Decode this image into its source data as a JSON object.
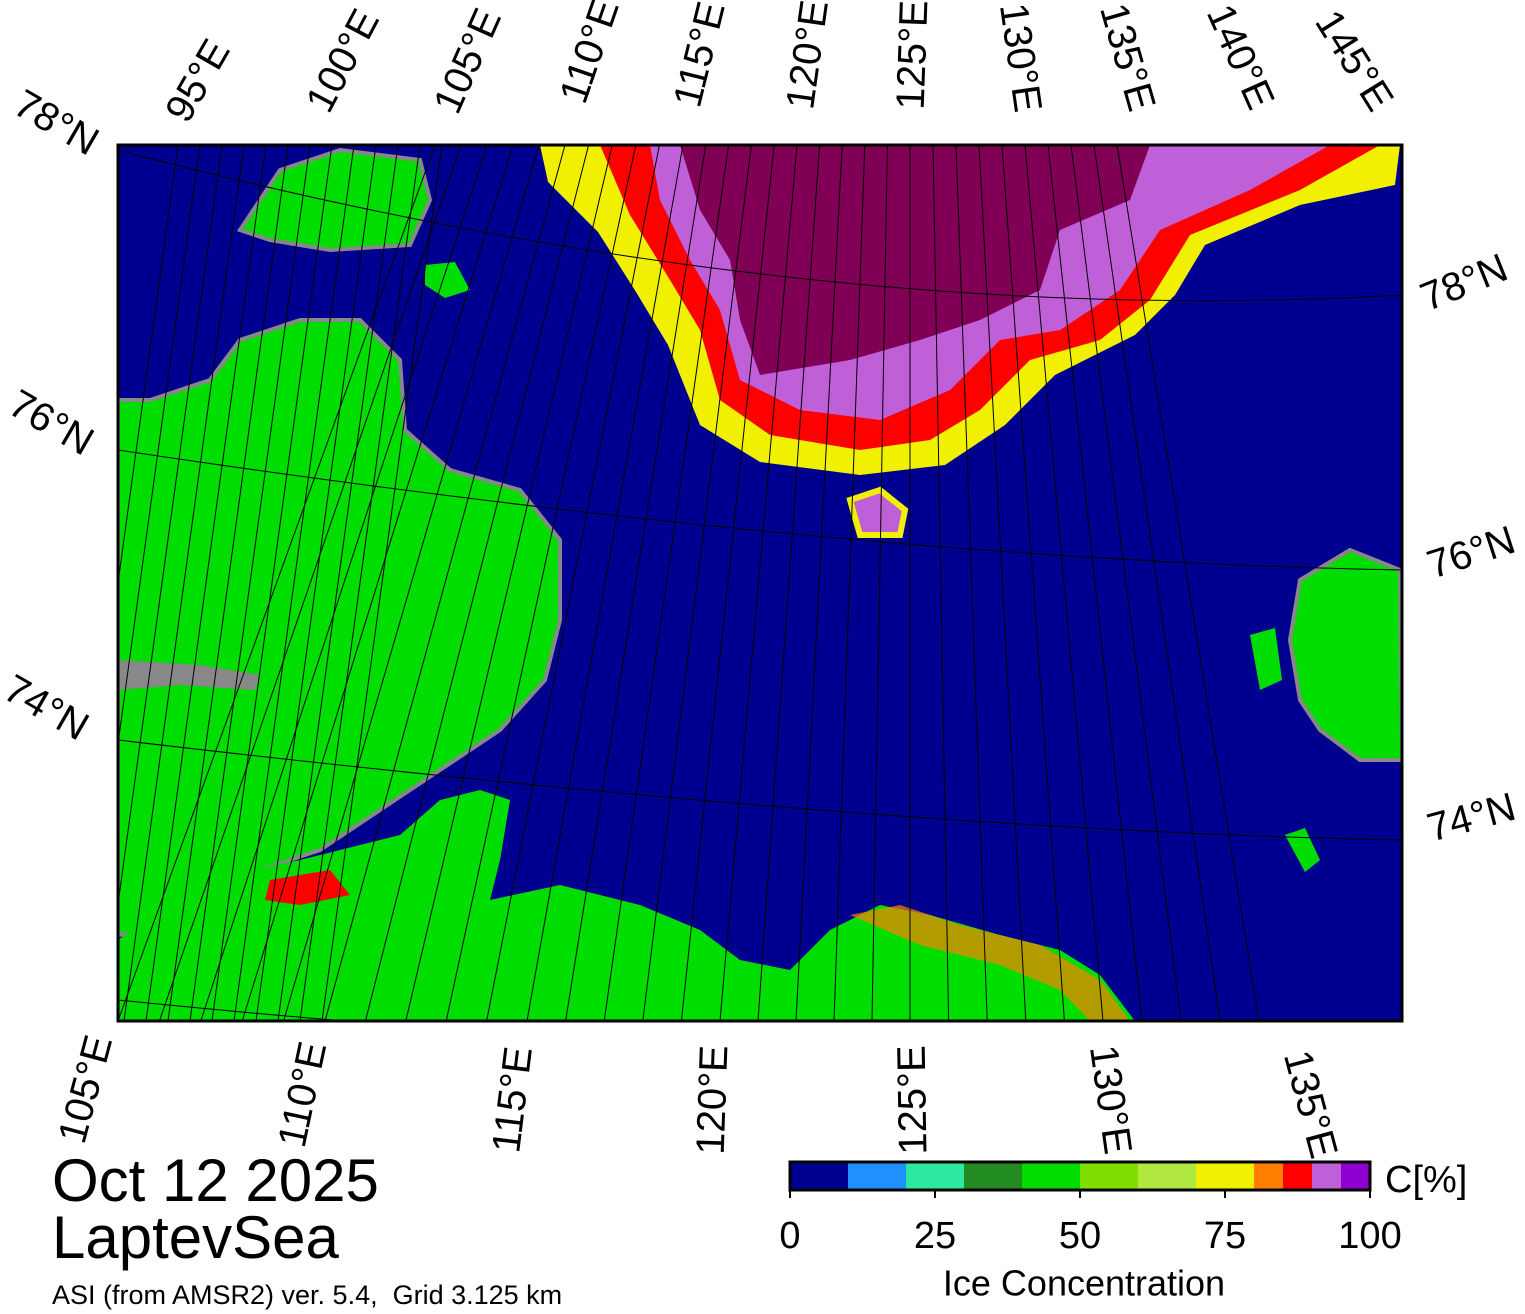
{
  "map": {
    "title": "Oct 12 2025",
    "region": "LaptevSea",
    "source": "ASI (from AMSR2) ver. 5.4,  Grid 3.125 km",
    "top_labels": [
      "95°E",
      "100°E",
      "105°E",
      "110°E",
      "115°E",
      "120°E",
      "125°E",
      "130°E",
      "135°E",
      "140°E",
      "145°E"
    ],
    "bottom_labels": [
      "105°E",
      "110°E",
      "115°E",
      "120°E",
      "125°E",
      "130°E",
      "135°E"
    ],
    "left_labels": [
      "78°N",
      "76°N",
      "74°N"
    ],
    "right_labels": [
      "78°N",
      "76°N",
      "74°N"
    ]
  },
  "colorbar": {
    "label": "Ice Concentration",
    "unit": "C[%]",
    "bounds": [
      0,
      10,
      20,
      30,
      40,
      50,
      60,
      70,
      80,
      85,
      90,
      95,
      100
    ],
    "colors": [
      "#000090",
      "#1e90ff",
      "#2ee8a0",
      "#228b22",
      "#00dd00",
      "#7fe000",
      "#b0e840",
      "#f0f000",
      "#ff8000",
      "#ff0000",
      "#c060d8",
      "#9000d0"
    ],
    "ticks": [
      0,
      25,
      50,
      75,
      100
    ]
  }
}
